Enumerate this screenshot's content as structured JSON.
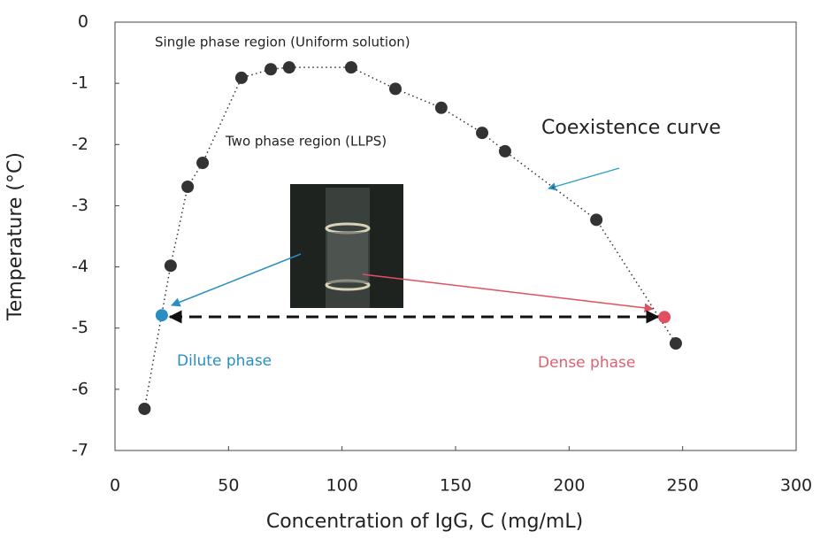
{
  "chart_data": {
    "type": "scatter",
    "xlabel": "Concentration of IgG, C (mg/mL)",
    "ylabel": "Temperature (°C)",
    "xlim": [
      0,
      300
    ],
    "ylim": [
      -7,
      0
    ],
    "xticks": [
      0,
      50,
      100,
      150,
      200,
      250,
      300
    ],
    "yticks": [
      0,
      -1,
      -2,
      -3,
      -4,
      -5,
      -6,
      -7
    ],
    "series": [
      {
        "color": "#333333",
        "x": [
          13,
          24.5,
          32,
          38.6,
          55.7,
          68.6,
          76.7,
          104,
          123.5,
          143.7,
          161.7,
          171.8,
          212,
          247
        ],
        "y": [
          -6.32,
          -3.98,
          -2.69,
          -2.3,
          -0.91,
          -0.77,
          -0.74,
          -0.74,
          -1.09,
          -1.4,
          -1.81,
          -2.11,
          -3.23,
          -5.25
        ]
      },
      {
        "color": "#2a8fc0",
        "x": [
          20.6
        ],
        "y": [
          -4.79
        ]
      },
      {
        "color": "#e05060",
        "x": [
          242
        ],
        "y": [
          -4.82
        ]
      }
    ],
    "annotations": [
      {
        "text": "Single phase region (Uniform solution)",
        "color": "#222222"
      },
      {
        "text": "Two phase region (LLPS)",
        "color": "#222222"
      },
      {
        "text": "Coexistence curve",
        "color": "#222222"
      },
      {
        "text": "Dilute phase",
        "color": "#2a8fc0"
      },
      {
        "text": "Dense phase",
        "color": "#e06070"
      }
    ]
  }
}
